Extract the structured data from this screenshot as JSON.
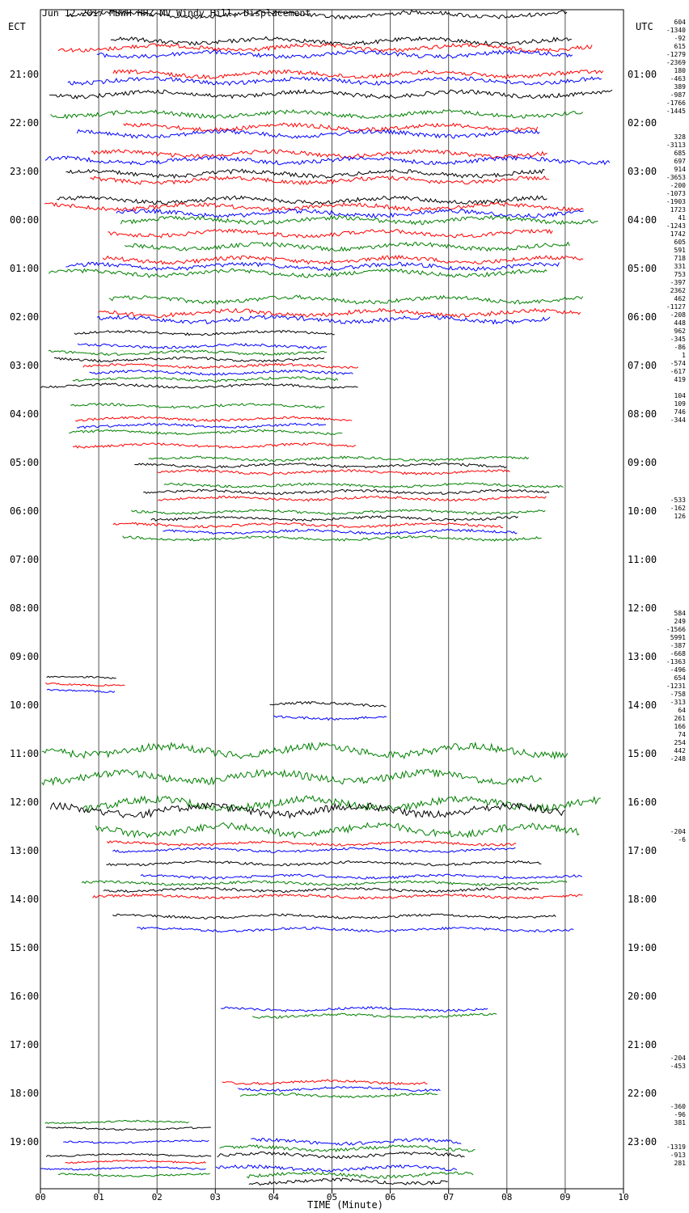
{
  "chart_data": {
    "type": "line",
    "title": "Jun 12 2017 MBWH HHZ MV Windy Hill, Displacement",
    "xlabel": "TIME (Minute)",
    "ylabel_left": "ECT",
    "ylabel_right": "UTC",
    "x_ticks": [
      "00",
      "01",
      "02",
      "03",
      "04",
      "05",
      "06",
      "07",
      "08",
      "09",
      "10"
    ],
    "left_hours": [
      "21:00",
      "22:00",
      "23:00",
      "00:00",
      "01:00",
      "02:00",
      "03:00",
      "04:00",
      "05:00",
      "06:00",
      "07:00",
      "08:00",
      "09:00",
      "10:00",
      "11:00",
      "12:00",
      "13:00",
      "14:00",
      "15:00",
      "16:00",
      "17:00",
      "18:00",
      "19:00"
    ],
    "right_hours": [
      "01:00",
      "02:00",
      "03:00",
      "04:00",
      "05:00",
      "06:00",
      "07:00",
      "08:00",
      "09:00",
      "10:00",
      "11:00",
      "12:00",
      "13:00",
      "14:00",
      "15:00",
      "16:00",
      "17:00",
      "18:00",
      "19:00",
      "20:00",
      "21:00",
      "22:00",
      "23:00"
    ],
    "right_values": [
      "604",
      "-1340",
      "-92",
      "615",
      "-1279",
      "-2369",
      "180",
      "-463",
      "389",
      "-987",
      "-1766",
      "-1445",
      "328",
      "-3113",
      "685",
      "697",
      "914",
      "-3653",
      "-200",
      "-1073",
      "-1903",
      "1723",
      "41",
      "-1243",
      "1742",
      "605",
      "591",
      "718",
      "331",
      "753",
      "-397",
      "2362",
      "462",
      "-1127",
      "-208",
      "448",
      "962",
      "-345",
      "-86",
      "1",
      "-574",
      "-617",
      "419",
      "104",
      "109",
      "746",
      "-344",
      "-533",
      "-162",
      "126",
      "584",
      "249",
      "-1566",
      "5991",
      "-387",
      "-668",
      "-1363",
      "-496",
      "654",
      "-1231",
      "-758",
      "-313",
      "64",
      "261",
      "166",
      "74",
      "254",
      "442",
      "-248",
      "-204",
      "-6",
      "-204",
      "-453",
      "-360",
      "-96",
      "381",
      "-1319",
      "-913",
      "281"
    ],
    "series_colors": [
      "#000000",
      "#ff0000",
      "#0000ff",
      "#008000"
    ]
  }
}
